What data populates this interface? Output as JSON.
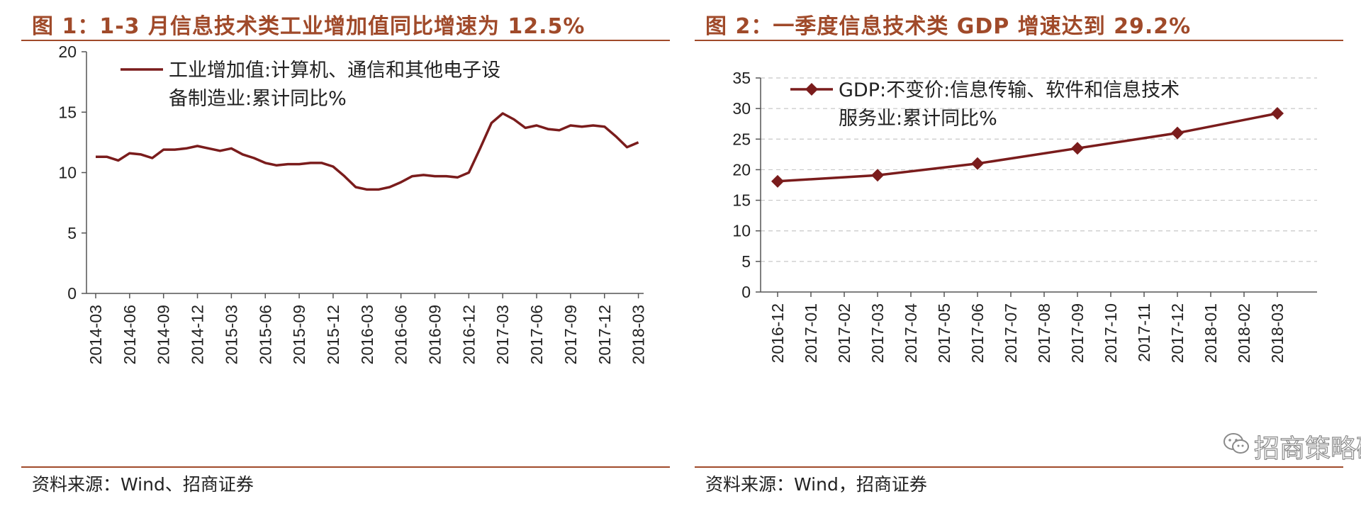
{
  "panel1": {
    "title": "图 1：1-3 月信息技术类工业增加值同比增速为 12.5%",
    "source": "资料来源：Wind、招商证券"
  },
  "panel2": {
    "title": "图 2：一季度信息技术类 GDP 增速达到 29.2%",
    "source": "资料来源：Wind，招商证券",
    "watermark": "招商策略研究"
  },
  "colors": {
    "accent": "#a04a2a",
    "series": "#7a1c1c",
    "grid": "#c8c8c8"
  },
  "chart_data": [
    {
      "type": "line",
      "title": "图 1：1-3 月信息技术类工业增加值同比增速为 12.5%",
      "ylim": [
        0,
        20
      ],
      "yticks": [
        "0",
        "5",
        "10",
        "15",
        "20"
      ],
      "x_tick_labels": [
        "2014-03",
        "2014-06",
        "2014-09",
        "2014-12",
        "2015-03",
        "2015-06",
        "2015-09",
        "2015-12",
        "2016-03",
        "2016-06",
        "2016-09",
        "2016-12",
        "2017-03",
        "2017-06",
        "2017-09",
        "2017-12",
        "2018-03"
      ],
      "grid": false,
      "legend_position": "top",
      "series": [
        {
          "name": "工业增加值:计算机、通信和其他电子设备制造业:累计同比%",
          "legend_lines": [
            "工业增加值:计算机、通信和其他电子设",
            "备制造业:累计同比%"
          ],
          "x": [
            "2014-03",
            "2014-04",
            "2014-05",
            "2014-06",
            "2014-07",
            "2014-08",
            "2014-09",
            "2014-10",
            "2014-11",
            "2014-12",
            "2015-01",
            "2015-02",
            "2015-03",
            "2015-04",
            "2015-05",
            "2015-06",
            "2015-07",
            "2015-08",
            "2015-09",
            "2015-10",
            "2015-11",
            "2015-12",
            "2016-01",
            "2016-02",
            "2016-03",
            "2016-04",
            "2016-05",
            "2016-06",
            "2016-07",
            "2016-08",
            "2016-09",
            "2016-10",
            "2016-11",
            "2016-12",
            "2017-01",
            "2017-02",
            "2017-03",
            "2017-04",
            "2017-05",
            "2017-06",
            "2017-07",
            "2017-08",
            "2017-09",
            "2017-10",
            "2017-11",
            "2017-12",
            "2018-01",
            "2018-02",
            "2018-03"
          ],
          "values": [
            11.3,
            11.3,
            11.0,
            11.6,
            11.5,
            11.2,
            11.9,
            11.9,
            12.0,
            12.2,
            12.0,
            11.8,
            12.0,
            11.5,
            11.2,
            10.8,
            10.6,
            10.7,
            10.7,
            10.8,
            10.8,
            10.5,
            9.7,
            8.8,
            8.6,
            8.6,
            8.8,
            9.2,
            9.7,
            9.8,
            9.7,
            9.7,
            9.6,
            10.0,
            12.0,
            14.1,
            14.9,
            14.4,
            13.7,
            13.9,
            13.6,
            13.5,
            13.9,
            13.8,
            13.9,
            13.8,
            13.0,
            12.1,
            12.5
          ]
        }
      ]
    },
    {
      "type": "line",
      "title": "图 2：一季度信息技术类 GDP 增速达到 29.2%",
      "ylim": [
        0,
        35
      ],
      "yticks": [
        "0",
        "5",
        "10",
        "15",
        "20",
        "25",
        "30",
        "35"
      ],
      "x_tick_labels": [
        "2016-12",
        "2017-01",
        "2017-02",
        "2017-03",
        "2017-04",
        "2017-05",
        "2017-06",
        "2017-07",
        "2017-08",
        "2017-09",
        "2017-10",
        "2017-11",
        "2017-12",
        "2018-01",
        "2018-02",
        "2018-03"
      ],
      "grid": true,
      "legend_position": "top",
      "series": [
        {
          "name": "GDP:不变价:信息传输、软件和信息技术服务业:累计同比%",
          "legend_lines": [
            "GDP:不变价:信息传输、软件和信息技术",
            "服务业:累计同比%"
          ],
          "x": [
            "2016-12",
            "2017-03",
            "2017-06",
            "2017-09",
            "2017-12",
            "2018-03"
          ],
          "values": [
            18.1,
            19.1,
            21.0,
            23.5,
            26.0,
            29.2
          ],
          "marker": "diamond"
        }
      ]
    }
  ]
}
